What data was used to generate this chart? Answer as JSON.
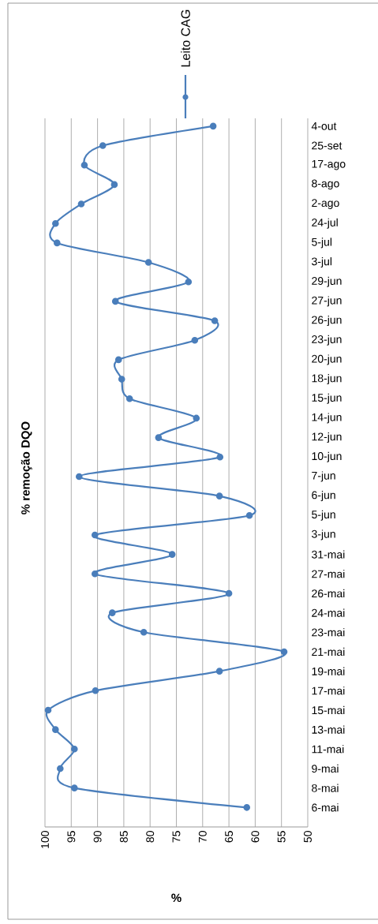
{
  "chart_data": {
    "type": "line",
    "orientation": "horizontal",
    "title": "% remoção DQO",
    "xlabel": "%",
    "categories": [
      "4-out",
      "25-set",
      "17-ago",
      "8-ago",
      "2-ago",
      "24-jul",
      "5-jul",
      "3-jul",
      "29-jun",
      "27-jun",
      "26-jun",
      "23-jun",
      "20-jun",
      "18-jun",
      "15-jun",
      "14-jun",
      "12-jun",
      "10-jun",
      "7-jun",
      "6-jun",
      "5-jun",
      "3-jun",
      "31-mai",
      "27-mai",
      "26-mai",
      "24-mai",
      "23-mai",
      "21-mai",
      "19-mai",
      "17-mai",
      "15-mai",
      "13-mai",
      "11-mai",
      "9-mai",
      "8-mai",
      "6-mai"
    ],
    "series": [
      {
        "name": "Leito CAG",
        "color": "#4a7ebb",
        "values": [
          68,
          89,
          92.5,
          86.8,
          93.1,
          98,
          97.7,
          80.3,
          72.7,
          86.6,
          67.7,
          71.5,
          86,
          85.4,
          83.9,
          71.2,
          78.4,
          66.7,
          93.5,
          66.8,
          61.1,
          90.5,
          75.8,
          90.5,
          65,
          87.2,
          81.2,
          54.5,
          66.8,
          90.4,
          99.4,
          98,
          94.4,
          97.1,
          94.4,
          61.6
        ]
      }
    ],
    "xlim": [
      100,
      50
    ],
    "xticks": [
      100,
      95,
      90,
      85,
      80,
      75,
      70,
      65,
      60,
      55,
      50
    ],
    "grid": "x",
    "legend": "top",
    "marker": "circle",
    "line_style": "solid"
  }
}
